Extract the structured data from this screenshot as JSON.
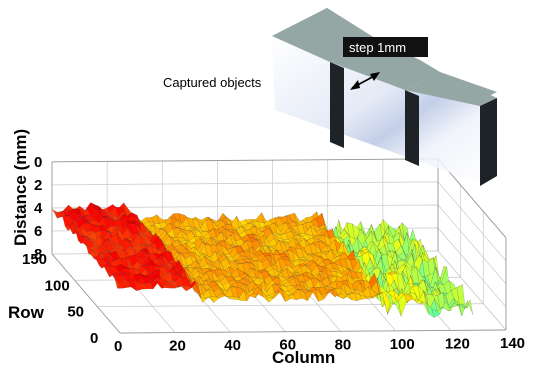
{
  "chart_data": {
    "type": "surface3d",
    "title": "",
    "xlabel": "Column",
    "ylabel": "Row",
    "zlabel": "Distance (mm)",
    "xlim": [
      0,
      140
    ],
    "ylim": [
      0,
      150
    ],
    "zlim": [
      0,
      8
    ],
    "z_reversed": true,
    "xticks": [
      "0",
      "20",
      "40",
      "60",
      "80",
      "100",
      "120",
      "140"
    ],
    "yticks": [
      "0",
      "50",
      "100",
      "150"
    ],
    "zticks": [
      "0",
      "2",
      "4",
      "6",
      "8"
    ],
    "grid": true,
    "colormap": "jet",
    "surface_levels": [
      {
        "x_from": 0,
        "x_to": 30,
        "distance_mm": 4.0
      },
      {
        "x_from": 30,
        "x_to": 98,
        "distance_mm": 5.0
      },
      {
        "x_from": 98,
        "x_to": 128,
        "distance_mm": 6.0
      }
    ]
  },
  "inset": {
    "annotation": "Captured objects",
    "step_label": "step 1mm"
  }
}
